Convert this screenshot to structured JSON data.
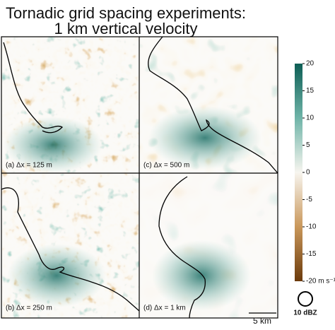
{
  "title": [
    "Tornadic grid spacing experiments:",
    "1 km vertical velocity"
  ],
  "panels": [
    {
      "label": "(a) Δx = 125 m"
    },
    {
      "label": "(c) Δx = 500 m"
    },
    {
      "label": "(b) Δx = 250 m"
    },
    {
      "label": "(d) Δx = 1 km"
    }
  ],
  "colorbar": {
    "lim": [
      -20,
      20
    ],
    "ticks": [
      20,
      15,
      10,
      5,
      0,
      -5,
      -10,
      -15,
      {
        "value": -20,
        "label": "-20 m s⁻¹"
      }
    ]
  },
  "scale_bar": "5 km",
  "contour_legend": "10 dBZ"
}
